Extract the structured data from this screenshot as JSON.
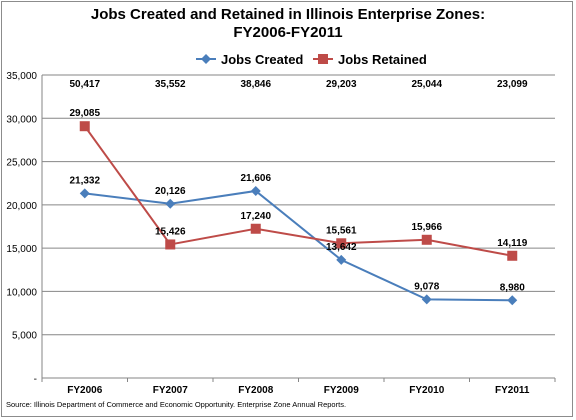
{
  "chart_data": {
    "type": "line",
    "title_line1": "Jobs Created and Retained in Illinois Enterprise Zones:",
    "title_line2": "FY2006-FY2011",
    "categories": [
      "FY2006",
      "FY2007",
      "FY2008",
      "FY2009",
      "FY2010",
      "FY2011"
    ],
    "series": [
      {
        "name": "Jobs Created",
        "color": "#4a7ebb",
        "marker": "diamond",
        "values": [
          21332,
          20126,
          21606,
          13642,
          9078,
          8980
        ],
        "labels": [
          "21,332",
          "20,126",
          "21,606",
          "13,642",
          "9,078",
          "8,980"
        ]
      },
      {
        "name": "Jobs Retained",
        "color": "#be4b48",
        "marker": "square",
        "values": [
          29085,
          15426,
          17240,
          15561,
          15966,
          14119
        ],
        "labels": [
          "29,085",
          "15,426",
          "17,240",
          "15,561",
          "15,966",
          "14,119"
        ]
      }
    ],
    "totals": [
      "50,417",
      "35,552",
      "38,846",
      "29,203",
      "25,044",
      "23,099"
    ],
    "ylim": [
      0,
      35000
    ],
    "yticks": [
      0,
      5000,
      10000,
      15000,
      20000,
      25000,
      30000,
      35000
    ],
    "ytick_labels": [
      "-",
      "5,000",
      "10,000",
      "15,000",
      "20,000",
      "25,000",
      "30,000",
      "35,000"
    ],
    "grid": true,
    "legend_position": "top-right"
  },
  "source_note": "Source: Illinois Department of Commerce and Economic Opportunity.  Enterprise Zone Annual Reports."
}
